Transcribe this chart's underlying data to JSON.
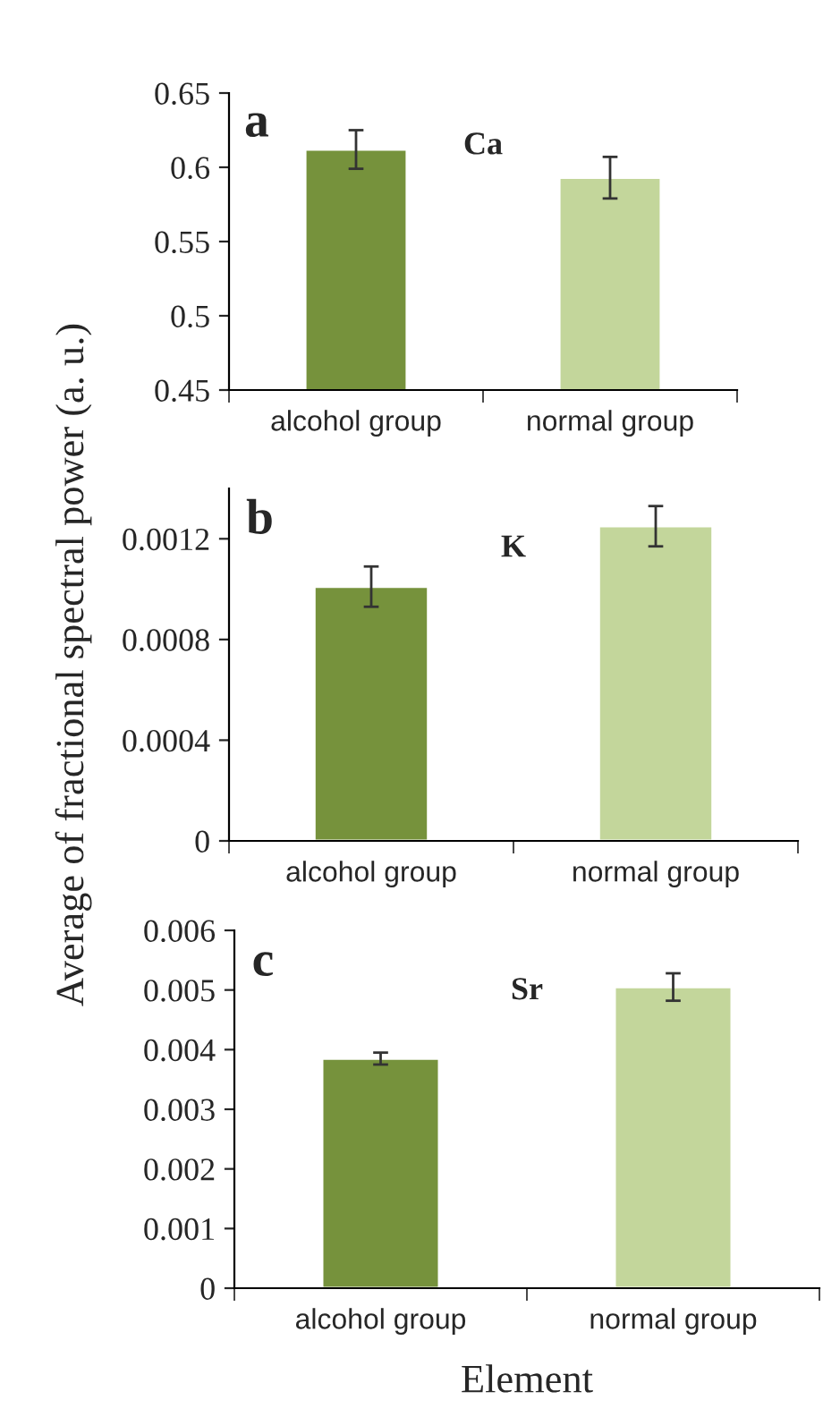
{
  "chart_data": [
    {
      "type": "bar",
      "categories": [
        "alcohol group",
        "normal group"
      ],
      "values": [
        0.612,
        0.593
      ],
      "errors": [
        0.013,
        0.014
      ],
      "colors": [
        "#76923c",
        "#c3d69b"
      ],
      "ylim": [
        0.45,
        0.65
      ],
      "yticks": [
        0.45,
        0.5,
        0.55,
        0.6,
        0.65
      ],
      "grid": false,
      "legend": false,
      "annotations": [
        "a",
        "Ca"
      ]
    },
    {
      "type": "bar",
      "categories": [
        "alcohol group",
        "normal group"
      ],
      "values": [
        0.00101,
        0.00125
      ],
      "errors": [
        8e-05,
        8e-05
      ],
      "colors": [
        "#76923c",
        "#c3d69b"
      ],
      "ylim": [
        0,
        0.0014
      ],
      "yticks": [
        0,
        0.0004,
        0.0008,
        0.0012
      ],
      "ylabel": "Average of fractional spectral power (a. u.)",
      "grid": false,
      "legend": false,
      "annotations": [
        "b",
        "K"
      ]
    },
    {
      "type": "bar",
      "categories": [
        "alcohol group",
        "normal group"
      ],
      "values": [
        0.00385,
        0.00505
      ],
      "errors": [
        0.0001,
        0.00023
      ],
      "colors": [
        "#76923c",
        "#c3d69b"
      ],
      "ylim": [
        0,
        0.006
      ],
      "yticks": [
        0,
        0.001,
        0.002,
        0.003,
        0.004,
        0.005,
        0.006
      ],
      "xlabel": "Element",
      "grid": false,
      "legend": false,
      "annotations": [
        "c",
        "Sr"
      ]
    }
  ]
}
